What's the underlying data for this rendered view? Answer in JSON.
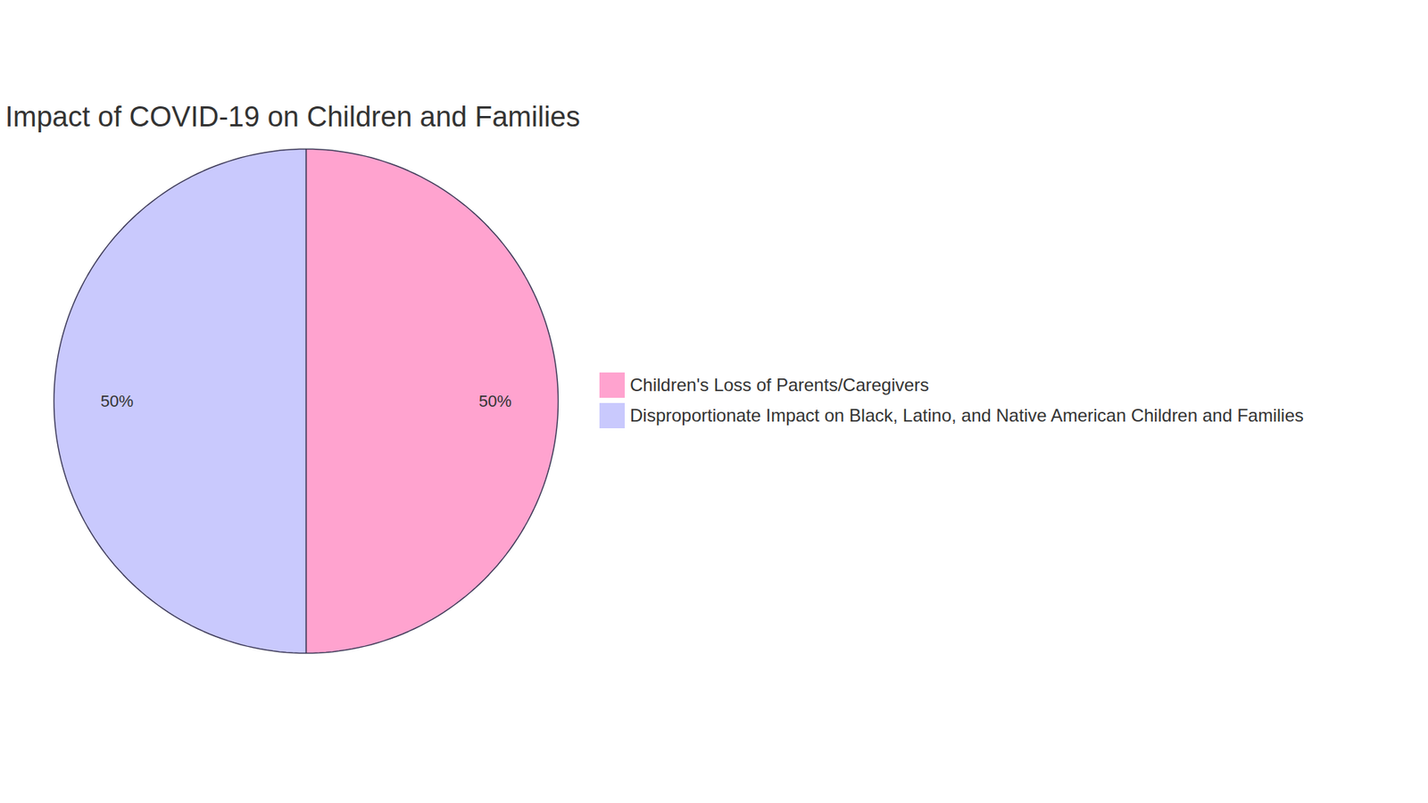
{
  "chart_data": {
    "type": "pie",
    "title": "Impact of COVID-19 on Children and Families",
    "categories": [
      "Children's Loss of Parents/Caregivers",
      "Disproportionate Impact on Black, Latino, and Native American Children and Families"
    ],
    "values": [
      50,
      50
    ],
    "value_labels": [
      "50%",
      "50%"
    ],
    "colors": [
      "#ffa3cf",
      "#c9c9fd"
    ],
    "data_labels": true,
    "legend": "right"
  }
}
